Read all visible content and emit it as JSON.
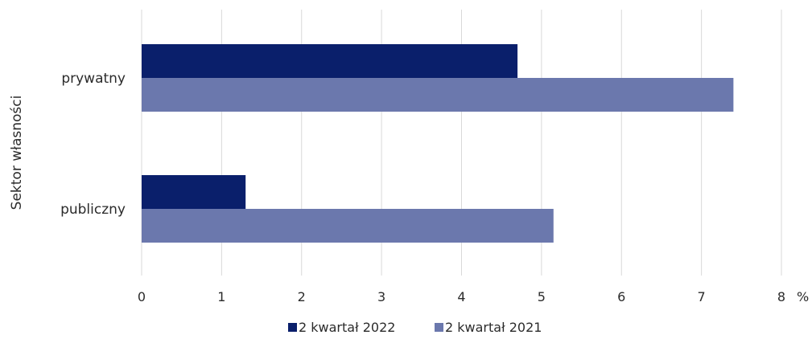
{
  "chart_data": {
    "type": "bar",
    "orientation": "horizontal",
    "categories": [
      "prywatny",
      "publiczny"
    ],
    "series": [
      {
        "name": "2 kwartał 2022",
        "values": [
          4.7,
          1.3
        ],
        "color": "#0a1f6b"
      },
      {
        "name": "2 kwartał 2021",
        "values": [
          7.4,
          5.15
        ],
        "color": "#6b78ad"
      }
    ],
    "ylabel": "Sektor własności",
    "xunit": "%",
    "xlim": [
      0,
      8
    ],
    "xticks": [
      "0",
      "1",
      "2",
      "3",
      "4",
      "5",
      "6",
      "7",
      "8"
    ],
    "grid": true,
    "gridColor": "#d9d9d9",
    "legend": "bottom"
  }
}
